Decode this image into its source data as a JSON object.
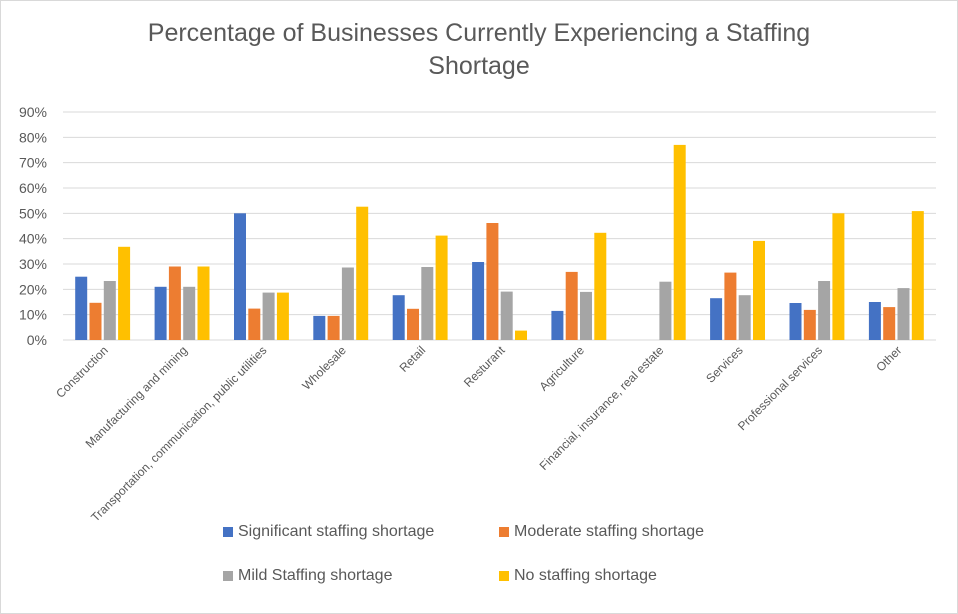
{
  "chart_data": {
    "type": "bar",
    "title": "Percentage of Businesses Currently Experiencing a Staffing Shortage",
    "title_lines": [
      "Percentage of Businesses Currently Experiencing a Staffing",
      "Shortage"
    ],
    "xlabel": "",
    "ylabel": "",
    "ylim": [
      0,
      0.9
    ],
    "yticks": [
      0,
      0.1,
      0.2,
      0.3,
      0.4,
      0.5,
      0.6,
      0.7,
      0.8,
      0.9
    ],
    "ytick_labels": [
      "0%",
      "10%",
      "20%",
      "30%",
      "40%",
      "50%",
      "60%",
      "70%",
      "80%",
      "90%"
    ],
    "grid": true,
    "legend_position": "bottom",
    "categories": [
      "Construction",
      "Manufacturing and mining",
      "Transportation, communication, public utilities",
      "Wholesale",
      "Retail",
      "Resturant",
      "Agriculture",
      "Financial, insurance, real estate",
      "Services",
      "Professional services",
      "Other"
    ],
    "series": [
      {
        "name": "Significant staffing shortage",
        "color": "#4472C4",
        "values": [
          0.25,
          0.21,
          0.5,
          0.095,
          0.177,
          0.308,
          0.115,
          0.0,
          0.165,
          0.146,
          0.15
        ]
      },
      {
        "name": "Moderate staffing shortage",
        "color": "#ED7D31",
        "values": [
          0.147,
          0.29,
          0.124,
          0.095,
          0.123,
          0.462,
          0.269,
          0.0,
          0.266,
          0.119,
          0.13
        ]
      },
      {
        "name": "Mild Staffing shortage",
        "color": "#A5A5A5",
        "values": [
          0.233,
          0.21,
          0.187,
          0.286,
          0.288,
          0.191,
          0.19,
          0.23,
          0.177,
          0.233,
          0.205
        ]
      },
      {
        "name": "No staffing shortage",
        "color": "#FFC000",
        "values": [
          0.368,
          0.29,
          0.187,
          0.526,
          0.412,
          0.037,
          0.423,
          0.77,
          0.391,
          0.5,
          0.509
        ]
      }
    ]
  }
}
